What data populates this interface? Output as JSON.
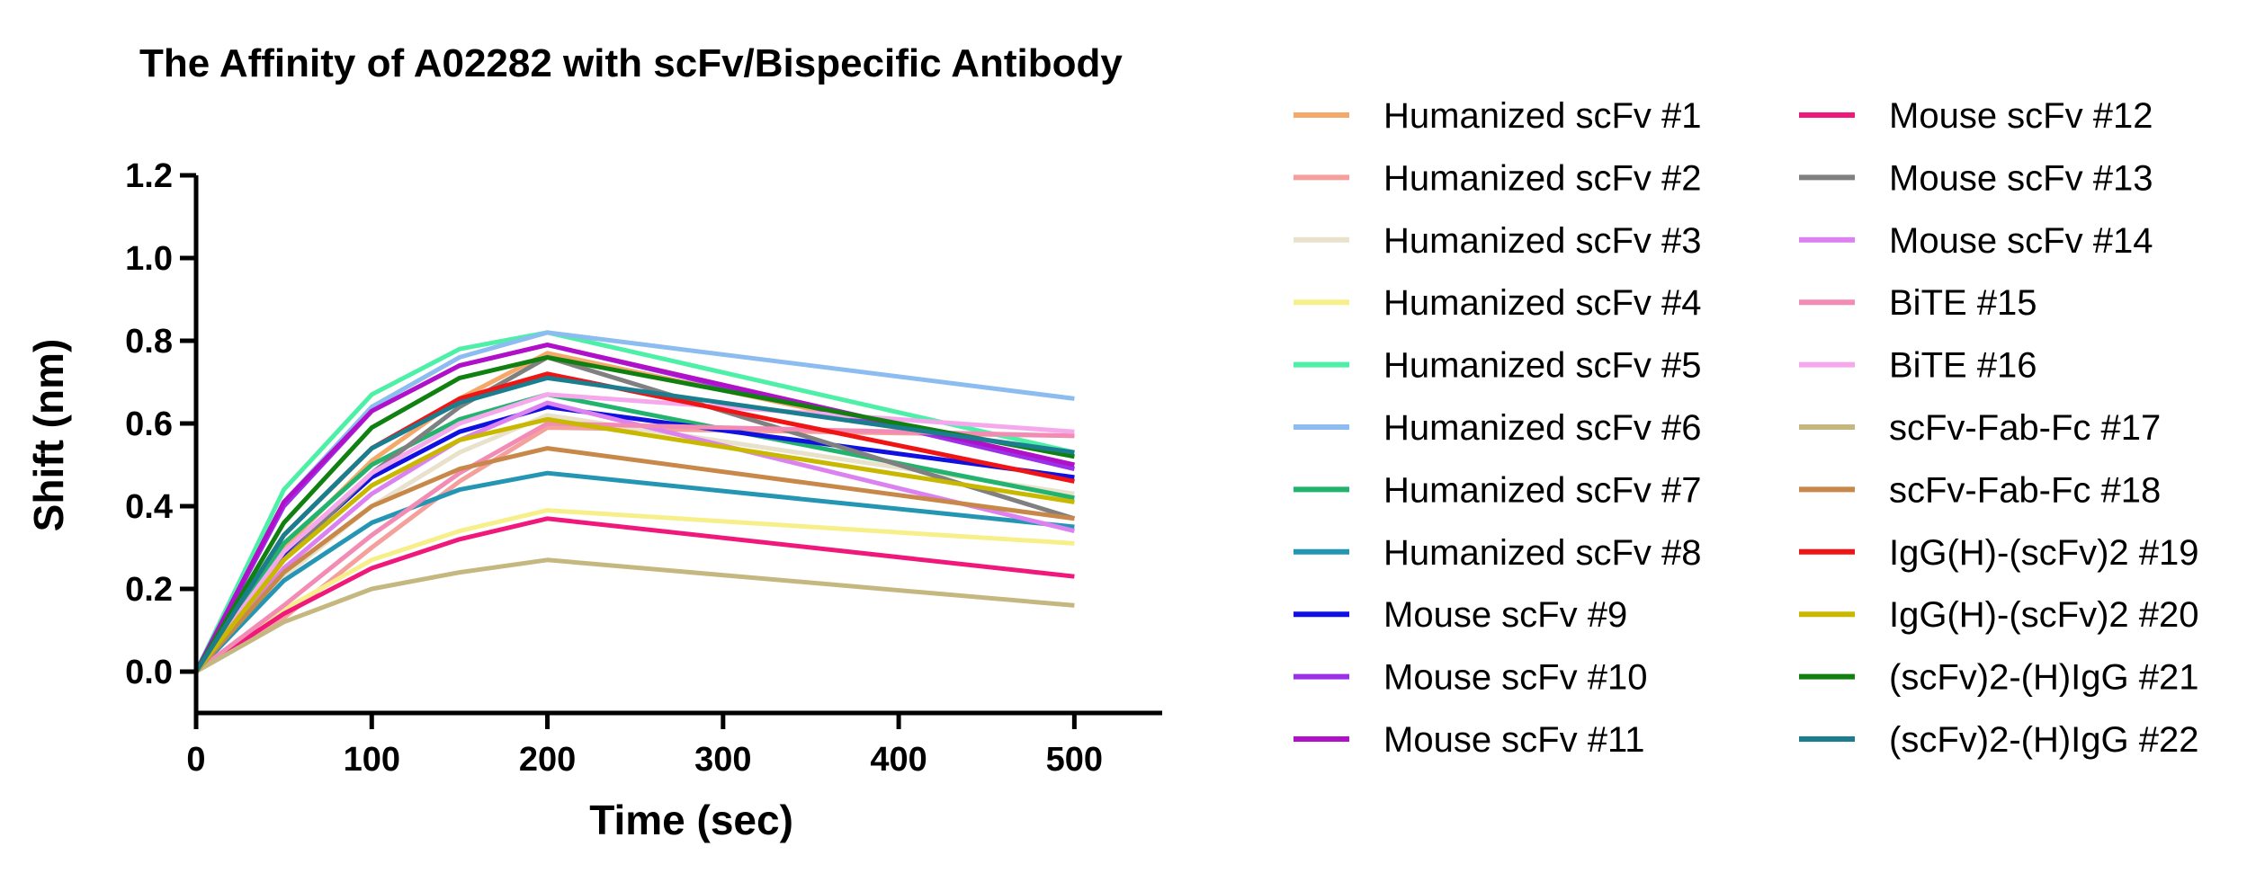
{
  "chart_data": {
    "type": "line",
    "title": "The Affinity of A02282 with scFv/Bispecific Antibody",
    "xlabel": "Time (sec)",
    "ylabel": "Shift (nm)",
    "xlim": [
      0,
      550
    ],
    "ylim": [
      -0.1,
      1.2
    ],
    "x_ticks": [
      0,
      100,
      200,
      300,
      400,
      500
    ],
    "y_ticks": [
      0.0,
      0.2,
      0.4,
      0.6,
      0.8,
      1.0,
      1.2
    ],
    "x_tick_labels": [
      "0",
      "100",
      "200",
      "300",
      "400",
      "500"
    ],
    "y_tick_labels": [
      "0.0",
      "0.2",
      "0.4",
      "0.6",
      "0.8",
      "1.0",
      "1.2"
    ],
    "grid": false,
    "legend_position": "right",
    "legend_columns": 2,
    "series": [
      {
        "name": "Humanized scFv #1",
        "color": "#f4a96b",
        "x": [
          0,
          50,
          100,
          150,
          200,
          500
        ],
        "y": [
          0,
          0.3,
          0.51,
          0.66,
          0.77,
          0.5
        ]
      },
      {
        "name": "Humanized scFv #2",
        "color": "#f4a09c",
        "x": [
          0,
          50,
          100,
          150,
          200,
          500
        ],
        "y": [
          0,
          0.13,
          0.3,
          0.46,
          0.59,
          0.57
        ]
      },
      {
        "name": "Humanized scFv #3",
        "color": "#e8e2cc",
        "x": [
          0,
          50,
          100,
          150,
          200,
          500
        ],
        "y": [
          0,
          0.23,
          0.4,
          0.53,
          0.62,
          0.43
        ]
      },
      {
        "name": "Humanized scFv #4",
        "color": "#f7f08a",
        "x": [
          0,
          50,
          100,
          150,
          200,
          500
        ],
        "y": [
          0,
          0.15,
          0.27,
          0.34,
          0.39,
          0.31
        ]
      },
      {
        "name": "Humanized scFv #5",
        "color": "#4ef0a8",
        "x": [
          0,
          50,
          100,
          150,
          200,
          500
        ],
        "y": [
          0,
          0.44,
          0.67,
          0.78,
          0.82,
          0.53
        ]
      },
      {
        "name": "Humanized scFv #6",
        "color": "#8cbcf0",
        "x": [
          0,
          50,
          100,
          150,
          200,
          500
        ],
        "y": [
          0,
          0.41,
          0.64,
          0.76,
          0.82,
          0.66
        ]
      },
      {
        "name": "Humanized scFv #7",
        "color": "#22b46e",
        "x": [
          0,
          50,
          100,
          150,
          200,
          500
        ],
        "y": [
          0,
          0.31,
          0.5,
          0.61,
          0.67,
          0.42
        ]
      },
      {
        "name": "Humanized scFv #8",
        "color": "#2496b4",
        "x": [
          0,
          50,
          100,
          150,
          200,
          500
        ],
        "y": [
          0,
          0.22,
          0.36,
          0.44,
          0.48,
          0.35
        ]
      },
      {
        "name": "Mouse scFv #9",
        "color": "#1010e0",
        "x": [
          0,
          50,
          100,
          150,
          200,
          500
        ],
        "y": [
          0,
          0.28,
          0.47,
          0.58,
          0.64,
          0.47
        ]
      },
      {
        "name": "Mouse scFv #10",
        "color": "#9b30e8",
        "x": [
          0,
          50,
          100,
          150,
          200,
          500
        ],
        "y": [
          0,
          0.4,
          0.63,
          0.74,
          0.79,
          0.49
        ]
      },
      {
        "name": "Mouse scFv #11",
        "color": "#b010c8",
        "x": [
          0,
          50,
          100,
          150,
          200,
          500
        ],
        "y": [
          0,
          0.41,
          0.63,
          0.74,
          0.79,
          0.5
        ]
      },
      {
        "name": "Mouse scFv #12",
        "color": "#f0187a",
        "x": [
          0,
          50,
          100,
          150,
          200,
          500
        ],
        "y": [
          0,
          0.14,
          0.25,
          0.32,
          0.37,
          0.23
        ]
      },
      {
        "name": "Mouse scFv #13",
        "color": "#808080",
        "x": [
          0,
          50,
          100,
          150,
          200,
          500
        ],
        "y": [
          0,
          0.27,
          0.48,
          0.64,
          0.76,
          0.37
        ]
      },
      {
        "name": "Mouse scFv #14",
        "color": "#dc82f0",
        "x": [
          0,
          50,
          100,
          150,
          200,
          500
        ],
        "y": [
          0,
          0.25,
          0.43,
          0.56,
          0.65,
          0.34
        ]
      },
      {
        "name": "BiTE #15",
        "color": "#f28cb4",
        "x": [
          0,
          50,
          100,
          150,
          200,
          500
        ],
        "y": [
          0,
          0.16,
          0.33,
          0.48,
          0.6,
          0.57
        ]
      },
      {
        "name": "BiTE #16",
        "color": "#f5a8ec",
        "x": [
          0,
          50,
          100,
          150,
          200,
          500
        ],
        "y": [
          0,
          0.29,
          0.48,
          0.6,
          0.67,
          0.58
        ]
      },
      {
        "name": "scFv-Fab-Fc #17",
        "color": "#c4b880",
        "x": [
          0,
          50,
          100,
          150,
          200,
          500
        ],
        "y": [
          0,
          0.12,
          0.2,
          0.24,
          0.27,
          0.16
        ]
      },
      {
        "name": "scFv-Fab-Fc #18",
        "color": "#c8884a",
        "x": [
          0,
          50,
          100,
          150,
          200,
          500
        ],
        "y": [
          0,
          0.24,
          0.4,
          0.49,
          0.54,
          0.37
        ]
      },
      {
        "name": "IgG(H)-(scFv)2 #19",
        "color": "#f01414",
        "x": [
          0,
          50,
          100,
          150,
          200,
          500
        ],
        "y": [
          0,
          0.33,
          0.54,
          0.66,
          0.72,
          0.46
        ]
      },
      {
        "name": "IgG(H)-(scFv)2 #20",
        "color": "#c8b800",
        "x": [
          0,
          50,
          100,
          150,
          200,
          500
        ],
        "y": [
          0,
          0.27,
          0.45,
          0.56,
          0.61,
          0.41
        ]
      },
      {
        "name": "(scFv)2-(H)IgG #21",
        "color": "#108010",
        "x": [
          0,
          50,
          100,
          150,
          200,
          500
        ],
        "y": [
          0,
          0.36,
          0.59,
          0.71,
          0.76,
          0.52
        ]
      },
      {
        "name": "(scFv)2-(H)IgG #22",
        "color": "#1a7e8e",
        "x": [
          0,
          50,
          100,
          150,
          200,
          500
        ],
        "y": [
          0,
          0.33,
          0.54,
          0.65,
          0.71,
          0.53
        ]
      }
    ]
  }
}
